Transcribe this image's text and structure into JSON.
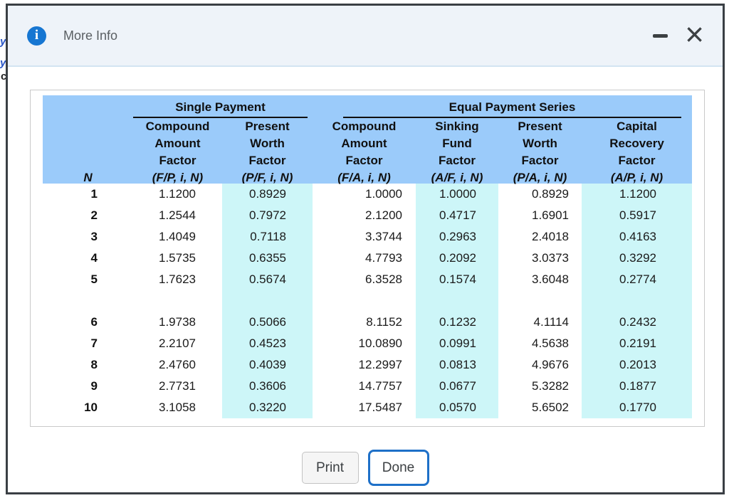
{
  "window": {
    "title": "More Info",
    "info_icon_glyph": "i",
    "close_glyph": "×"
  },
  "backdrop_fragments": [
    "y",
    "y",
    "c"
  ],
  "table": {
    "group_headers": [
      {
        "label": "Single Payment"
      },
      {
        "label": "Equal Payment Series"
      }
    ],
    "columns": [
      {
        "name": "n",
        "label_lines": [],
        "formula": "N",
        "highlight": false
      },
      {
        "name": "compound-amount-factor-single",
        "label_lines": [
          "Compound",
          "Amount",
          "Factor"
        ],
        "formula": "(F/P, i, N)",
        "highlight": false
      },
      {
        "name": "present-worth-factor-single",
        "label_lines": [
          "Present",
          "Worth",
          "Factor"
        ],
        "formula": "(P/F, i, N)",
        "highlight": true
      },
      {
        "name": "compound-amount-factor-equal",
        "label_lines": [
          "Compound",
          "Amount",
          "Factor"
        ],
        "formula": "(F/A, i, N)",
        "highlight": false
      },
      {
        "name": "sinking-fund-factor",
        "label_lines": [
          "Sinking",
          "Fund",
          "Factor"
        ],
        "formula": "(A/F, i, N)",
        "highlight": true
      },
      {
        "name": "present-worth-factor-equal",
        "label_lines": [
          "Present",
          "Worth",
          "Factor"
        ],
        "formula": "(P/A, i, N)",
        "highlight": false
      },
      {
        "name": "capital-recovery-factor",
        "label_lines": [
          "Capital",
          "Recovery",
          "Factor"
        ],
        "formula": "(A/P, i, N)",
        "highlight": true
      }
    ],
    "rows": [
      [
        "1",
        "1.1200",
        "0.8929",
        "1.0000",
        "1.0000",
        "0.8929",
        "1.1200"
      ],
      [
        "2",
        "1.2544",
        "0.7972",
        "2.1200",
        "0.4717",
        "1.6901",
        "0.5917"
      ],
      [
        "3",
        "1.4049",
        "0.7118",
        "3.3744",
        "0.2963",
        "2.4018",
        "0.4163"
      ],
      [
        "4",
        "1.5735",
        "0.6355",
        "4.7793",
        "0.2092",
        "3.0373",
        "0.3292"
      ],
      [
        "5",
        "1.7623",
        "0.5674",
        "6.3528",
        "0.1574",
        "3.6048",
        "0.2774"
      ],
      [
        "6",
        "1.9738",
        "0.5066",
        "8.1152",
        "0.1232",
        "4.1114",
        "0.2432"
      ],
      [
        "7",
        "2.2107",
        "0.4523",
        "10.0890",
        "0.0991",
        "4.5638",
        "0.2191"
      ],
      [
        "8",
        "2.4760",
        "0.4039",
        "12.2997",
        "0.0813",
        "4.9676",
        "0.2013"
      ],
      [
        "9",
        "2.7731",
        "0.3606",
        "14.7757",
        "0.0677",
        "5.3282",
        "0.1877"
      ],
      [
        "10",
        "3.1058",
        "0.3220",
        "17.5487",
        "0.0570",
        "5.6502",
        "0.1770"
      ]
    ],
    "spacer_after_row": 5
  },
  "buttons": {
    "print": "Print",
    "done": "Done"
  },
  "colors": {
    "header_blue": "#9bcbfa",
    "highlight_cyan": "#cdf6f8",
    "info_blue": "#1676d2",
    "done_border": "#1e70c8"
  }
}
